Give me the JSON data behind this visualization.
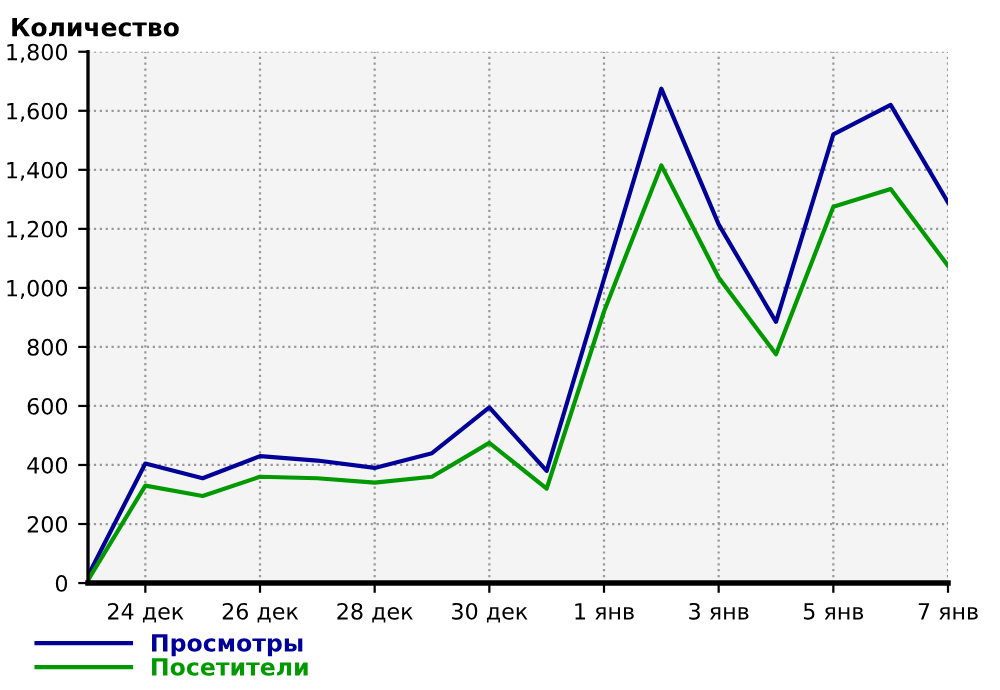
{
  "chart_data": {
    "type": "line",
    "title": "Количество",
    "categories": [
      null,
      "24 дек",
      null,
      "26 дек",
      null,
      "28 дек",
      null,
      "30 дек",
      null,
      "1 янв",
      null,
      "3 янв",
      null,
      "5 янв",
      null,
      "7 янв"
    ],
    "series": [
      {
        "name": "Просмотры",
        "color": "#000099",
        "values": [
          25,
          405,
          355,
          430,
          415,
          390,
          440,
          595,
          380,
          1030,
          1675,
          1215,
          885,
          1520,
          1620,
          1290
        ]
      },
      {
        "name": "Посетители",
        "color": "#009900",
        "values": [
          10,
          330,
          295,
          360,
          355,
          340,
          360,
          475,
          320,
          920,
          1415,
          1035,
          775,
          1275,
          1335,
          1075
        ]
      }
    ],
    "ylim": [
      0,
      1800
    ],
    "yticks": [
      0,
      {
        "value": 200,
        "label": "200"
      },
      {
        "value": 400,
        "label": "400"
      },
      {
        "value": 600,
        "label": "600"
      },
      {
        "value": 800,
        "label": "800"
      },
      {
        "value": 1000,
        "label": "1,000"
      },
      {
        "value": 1200,
        "label": "1,200"
      },
      {
        "value": 1400,
        "label": "1,400"
      },
      {
        "value": 1600,
        "label": "1,600"
      },
      {
        "value": 1800,
        "label": "1,800"
      }
    ],
    "grid": true,
    "legend": "bottom left",
    "marker": "none",
    "line_style": "solid"
  }
}
